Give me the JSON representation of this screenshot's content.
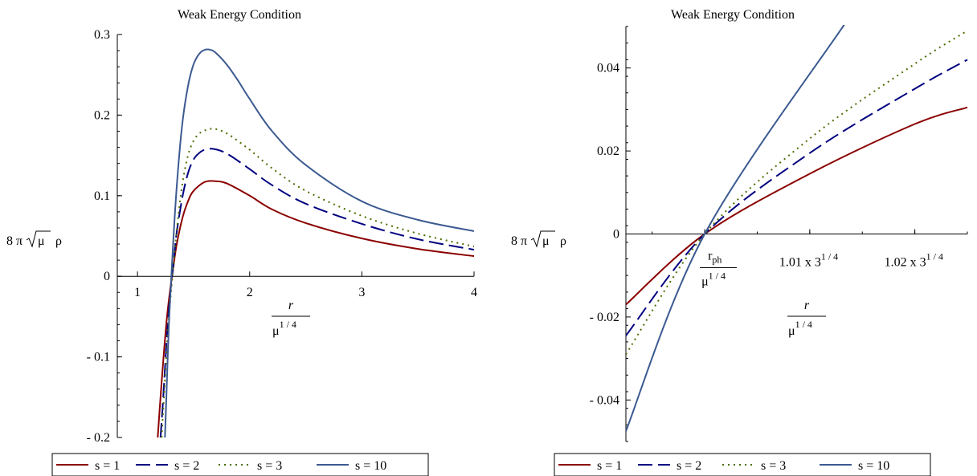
{
  "chart_data": [
    {
      "type": "line",
      "title": "Weak Energy Condition",
      "ylabel": "8 π √μ ρ",
      "xlabel": {
        "num": "r",
        "den": "μ",
        "den_exp": "1 / 4"
      },
      "xlim": [
        0.82,
        4.0
      ],
      "ylim": [
        -0.2,
        0.3
      ],
      "x_ticks": [
        {
          "v": 1,
          "label": "1"
        },
        {
          "v": 2,
          "label": "2"
        },
        {
          "v": 3,
          "label": "3"
        },
        {
          "v": 4,
          "label": "4"
        }
      ],
      "y_ticks": [
        {
          "v": 0.3,
          "label": "0.3"
        },
        {
          "v": 0.2,
          "label": "0.2"
        },
        {
          "v": 0.1,
          "label": "0.1"
        },
        {
          "v": 0,
          "label": "0"
        },
        {
          "v": -0.1,
          "label": "- 0.1"
        },
        {
          "v": -0.2,
          "label": "- 0.2"
        }
      ],
      "series": [
        {
          "name": "s = 1",
          "color": "#8b0000",
          "dash": "solid",
          "x": [
            1.18,
            1.2,
            1.23,
            1.26,
            1.29,
            1.32,
            1.35,
            1.4,
            1.45,
            1.5,
            1.6,
            1.7,
            1.8,
            2.0,
            2.2,
            2.5,
            3.0,
            3.5,
            4.0
          ],
          "y": [
            -0.2,
            -0.16,
            -0.105,
            -0.055,
            -0.018,
            0.012,
            0.04,
            0.072,
            0.093,
            0.106,
            0.117,
            0.118,
            0.115,
            0.1,
            0.083,
            0.066,
            0.047,
            0.034,
            0.025
          ]
        },
        {
          "name": "s = 2",
          "color": "#000080",
          "dash": "long",
          "x": [
            1.205,
            1.23,
            1.26,
            1.29,
            1.32,
            1.35,
            1.4,
            1.45,
            1.5,
            1.55,
            1.6,
            1.68,
            1.8,
            2.0,
            2.2,
            2.5,
            3.0,
            3.5,
            4.0
          ],
          "y": [
            -0.2,
            -0.15,
            -0.08,
            -0.025,
            0.015,
            0.055,
            0.098,
            0.128,
            0.145,
            0.153,
            0.157,
            0.158,
            0.152,
            0.133,
            0.113,
            0.09,
            0.065,
            0.046,
            0.033
          ]
        },
        {
          "name": "s = 3",
          "color": "#4b6e00",
          "dash": "dot",
          "x": [
            1.215,
            1.24,
            1.27,
            1.3,
            1.33,
            1.36,
            1.4,
            1.45,
            1.5,
            1.55,
            1.6,
            1.68,
            1.8,
            2.0,
            2.2,
            2.5,
            3.0,
            3.5,
            4.0
          ],
          "y": [
            -0.2,
            -0.14,
            -0.07,
            -0.018,
            0.028,
            0.07,
            0.115,
            0.15,
            0.168,
            0.177,
            0.181,
            0.183,
            0.177,
            0.157,
            0.134,
            0.106,
            0.075,
            0.053,
            0.037
          ]
        },
        {
          "name": "s = 10",
          "color": "#3c5a91",
          "dash": "solid",
          "x": [
            1.245,
            1.26,
            1.28,
            1.3,
            1.33,
            1.36,
            1.4,
            1.45,
            1.5,
            1.55,
            1.6,
            1.65,
            1.7,
            1.8,
            1.9,
            2.0,
            2.2,
            2.5,
            3.0,
            3.5,
            4.0
          ],
          "y": [
            -0.2,
            -0.14,
            -0.06,
            -0.005,
            0.07,
            0.13,
            0.19,
            0.236,
            0.263,
            0.276,
            0.281,
            0.281,
            0.277,
            0.262,
            0.242,
            0.22,
            0.18,
            0.138,
            0.093,
            0.07,
            0.056
          ]
        }
      ]
    },
    {
      "type": "line",
      "title": "Weak Energy Condition",
      "ylabel": "8 π √μ ρ",
      "xlabel": {
        "num": "r",
        "den": "μ",
        "den_exp": "1 / 4"
      },
      "xlim": [
        0.9925,
        1.025
      ],
      "ylim": [
        -0.05,
        0.05
      ],
      "x_ticks": [
        {
          "v": 1.0,
          "label": "r",
          "sub": "ph",
          "den": "μ",
          "den_exp": "1 / 4",
          "kind": "frac"
        },
        {
          "v": 1.01,
          "label": "1.01 x 3",
          "exp": "1 / 4",
          "kind": "pow"
        },
        {
          "v": 1.02,
          "label": "1.02 x 3",
          "exp": "1 / 4",
          "kind": "pow"
        }
      ],
      "y_ticks": [
        {
          "v": 0.04,
          "label": "0.04"
        },
        {
          "v": 0.02,
          "label": "0.02"
        },
        {
          "v": 0,
          "label": "0"
        },
        {
          "v": -0.02,
          "label": "- 0.02"
        },
        {
          "v": -0.04,
          "label": "- 0.04"
        }
      ],
      "series": [
        {
          "name": "s = 1",
          "color": "#8b0000",
          "dash": "solid",
          "x": [
            0.9925,
            1.0,
            1.01,
            1.02,
            1.025
          ],
          "y": [
            -0.017,
            0.0,
            0.0145,
            0.0265,
            0.0305
          ]
        },
        {
          "name": "s = 2",
          "color": "#000080",
          "dash": "long",
          "x": [
            0.9925,
            1.0,
            1.01,
            1.02,
            1.025
          ],
          "y": [
            -0.0245,
            0.0,
            0.0195,
            0.035,
            0.042
          ]
        },
        {
          "name": "s = 3",
          "color": "#4b6e00",
          "dash": "dot",
          "x": [
            0.9925,
            1.0,
            1.01,
            1.02,
            1.025
          ],
          "y": [
            -0.029,
            0.0,
            0.023,
            0.041,
            0.049
          ]
        },
        {
          "name": "s = 10",
          "color": "#3c5a91",
          "dash": "solid",
          "x": [
            0.9925,
            1.0,
            1.0133
          ],
          "y": [
            -0.0475,
            0.0,
            0.0505
          ]
        }
      ]
    }
  ]
}
